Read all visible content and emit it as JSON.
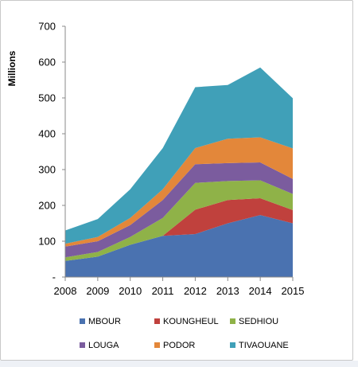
{
  "chart_data": {
    "type": "area",
    "stacked": true,
    "ylabel": "Millions",
    "xlabel": "",
    "title": "",
    "ylim": [
      0,
      700
    ],
    "y_ticks": [
      "-",
      "100",
      "200",
      "300",
      "400",
      "500",
      "600",
      "700"
    ],
    "x": [
      "2008",
      "2009",
      "2010",
      "2011",
      "2012",
      "2013",
      "2014",
      "2015"
    ],
    "grid": false,
    "legend_position": "bottom",
    "series": [
      {
        "name": "MBOUR",
        "color": "#4a72b0",
        "values": [
          45,
          57,
          90,
          115,
          120,
          150,
          173,
          150
        ]
      },
      {
        "name": "KOUNGHEUL",
        "color": "#c0413d",
        "values": [
          0,
          0,
          0,
          0,
          68,
          65,
          47,
          37
        ]
      },
      {
        "name": "SEDHIOU",
        "color": "#8fb248",
        "values": [
          10,
          13,
          22,
          50,
          75,
          53,
          50,
          45
        ]
      },
      {
        "name": "LOUGA",
        "color": "#7b5c9e",
        "values": [
          30,
          30,
          33,
          50,
          52,
          50,
          50,
          42
        ]
      },
      {
        "name": "PODOR",
        "color": "#e3873a",
        "values": [
          8,
          12,
          20,
          30,
          45,
          68,
          70,
          85
        ]
      },
      {
        "name": "TIVAOUANE",
        "color": "#40a0b8",
        "values": [
          37,
          50,
          80,
          115,
          170,
          150,
          195,
          140
        ]
      }
    ]
  }
}
